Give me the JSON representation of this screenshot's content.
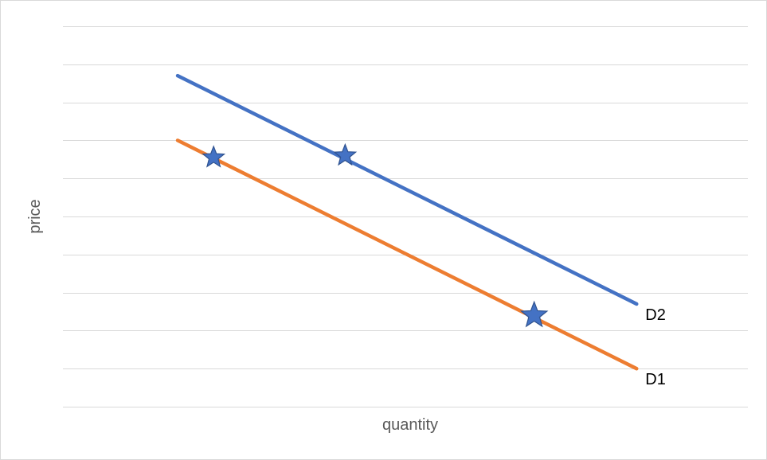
{
  "chart_data": {
    "type": "line",
    "xlabel": "quantity",
    "ylabel": "price",
    "grid": true,
    "xlim": [
      0,
      100
    ],
    "ylim": [
      0,
      10
    ],
    "gridlines": [
      0,
      1,
      2,
      3,
      4,
      5,
      6,
      7,
      8,
      9,
      10
    ],
    "series": [
      {
        "name": "D2",
        "color": "#4472c4",
        "points": [
          [
            16.75,
            8.7
          ],
          [
            83.75,
            2.7
          ]
        ]
      },
      {
        "name": "D1",
        "color": "#ed7d31",
        "points": [
          [
            16.75,
            7.0
          ],
          [
            83.75,
            1.0
          ]
        ]
      }
    ],
    "markers": [
      {
        "shape": "star",
        "color": "#4472c4",
        "x": 22.0,
        "y": 6.55
      },
      {
        "shape": "star",
        "color": "#4472c4",
        "x": 41.2,
        "y": 6.6
      },
      {
        "shape": "star",
        "color": "#4472c4",
        "x": 68.8,
        "y": 2.4
      }
    ]
  }
}
